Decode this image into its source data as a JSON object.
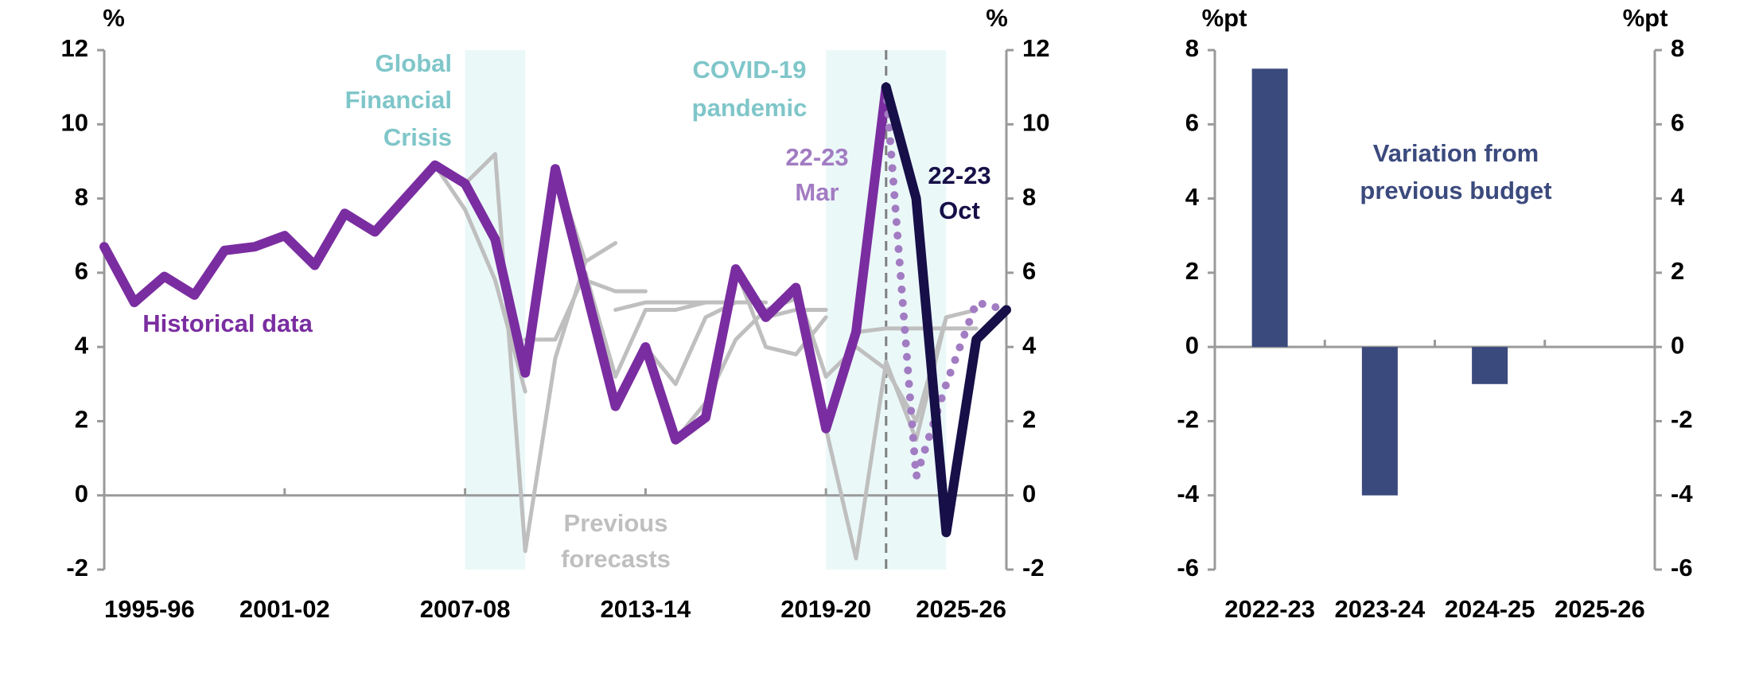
{
  "chart_data": [
    {
      "type": "line",
      "categories": [
        "1995-96",
        null,
        null,
        null,
        null,
        null,
        "2001-02",
        null,
        null,
        null,
        null,
        null,
        "2007-08",
        null,
        null,
        null,
        null,
        null,
        "2013-14",
        null,
        null,
        null,
        null,
        null,
        "2019-20",
        null,
        null,
        null,
        null,
        null,
        "2025-26"
      ],
      "series": [
        {
          "color": "#bfbfbf",
          "values": [
            null,
            null,
            null,
            null,
            null,
            null,
            null,
            null,
            null,
            null,
            null,
            8.9,
            7.7,
            5.8,
            2.8,
            null,
            null,
            null,
            null,
            null,
            null,
            null,
            null,
            null,
            null,
            null,
            null,
            null,
            null,
            null,
            null
          ]
        },
        {
          "color": "#bfbfbf",
          "values": [
            null,
            null,
            null,
            null,
            null,
            null,
            null,
            null,
            null,
            null,
            null,
            null,
            8.4,
            9.2,
            -1.5,
            3.7,
            6.3,
            null,
            null,
            null,
            null,
            null,
            null,
            null,
            null,
            null,
            null,
            null,
            null,
            null,
            null
          ]
        },
        {
          "color": "#bfbfbf",
          "values": [
            null,
            null,
            null,
            null,
            null,
            null,
            null,
            null,
            null,
            null,
            null,
            null,
            null,
            null,
            4.2,
            4.2,
            6.0,
            null,
            null,
            null,
            null,
            null,
            null,
            null,
            null,
            null,
            null,
            null,
            null,
            null,
            null
          ]
        },
        {
          "color": "#bfbfbf",
          "values": [
            null,
            null,
            null,
            null,
            null,
            null,
            null,
            null,
            null,
            null,
            null,
            null,
            null,
            null,
            null,
            8.8,
            6.3,
            6.8,
            null,
            null,
            null,
            null,
            null,
            null,
            null,
            null,
            null,
            null,
            null,
            null,
            null
          ]
        },
        {
          "color": "#bfbfbf",
          "values": [
            null,
            null,
            null,
            null,
            null,
            null,
            null,
            null,
            null,
            null,
            null,
            null,
            null,
            null,
            null,
            null,
            5.8,
            5.5,
            5.5,
            null,
            null,
            null,
            null,
            null,
            null,
            null,
            null,
            null,
            null,
            null,
            null
          ]
        },
        {
          "color": "#bfbfbf",
          "values": [
            null,
            null,
            null,
            null,
            null,
            null,
            null,
            null,
            null,
            null,
            null,
            null,
            null,
            null,
            null,
            null,
            6.0,
            3.2,
            5.0,
            5.0,
            5.2,
            null,
            null,
            null,
            null,
            null,
            null,
            null,
            null,
            null,
            null
          ]
        },
        {
          "color": "#bfbfbf",
          "values": [
            null,
            null,
            null,
            null,
            null,
            null,
            null,
            null,
            null,
            null,
            null,
            null,
            null,
            null,
            null,
            null,
            null,
            5.0,
            5.2,
            5.2,
            5.2,
            5.2,
            null,
            null,
            null,
            null,
            null,
            null,
            null,
            null,
            null
          ]
        },
        {
          "color": "#bfbfbf",
          "values": [
            null,
            null,
            null,
            null,
            null,
            null,
            null,
            null,
            null,
            null,
            null,
            null,
            null,
            null,
            null,
            null,
            null,
            null,
            4.0,
            3.0,
            4.8,
            5.2,
            5.2,
            null,
            null,
            null,
            null,
            null,
            null,
            null,
            null
          ]
        },
        {
          "color": "#bfbfbf",
          "values": [
            null,
            null,
            null,
            null,
            null,
            null,
            null,
            null,
            null,
            null,
            null,
            null,
            null,
            null,
            null,
            null,
            null,
            null,
            null,
            1.5,
            2.5,
            4.2,
            5.0,
            5.3,
            null,
            null,
            null,
            null,
            null,
            null,
            null
          ]
        },
        {
          "color": "#bfbfbf",
          "values": [
            null,
            null,
            null,
            null,
            null,
            null,
            null,
            null,
            null,
            null,
            null,
            null,
            null,
            null,
            null,
            null,
            null,
            null,
            null,
            null,
            null,
            6.1,
            4.0,
            3.8,
            4.8,
            null,
            null,
            null,
            null,
            null,
            null
          ]
        },
        {
          "color": "#bfbfbf",
          "values": [
            null,
            null,
            null,
            null,
            null,
            null,
            null,
            null,
            null,
            null,
            null,
            null,
            null,
            null,
            null,
            null,
            null,
            null,
            null,
            null,
            null,
            null,
            4.8,
            5.0,
            5.0,
            null,
            null,
            null,
            null,
            null,
            null
          ]
        },
        {
          "color": "#bfbfbf",
          "values": [
            null,
            null,
            null,
            null,
            null,
            null,
            null,
            null,
            null,
            null,
            null,
            null,
            null,
            null,
            null,
            null,
            null,
            null,
            null,
            null,
            null,
            null,
            null,
            5.6,
            3.2,
            4.0,
            3.4,
            2.0,
            4.8,
            null,
            null
          ]
        },
        {
          "color": "#bfbfbf",
          "values": [
            null,
            null,
            null,
            null,
            null,
            null,
            null,
            null,
            null,
            null,
            null,
            null,
            null,
            null,
            null,
            null,
            null,
            null,
            null,
            null,
            null,
            null,
            null,
            null,
            1.8,
            -1.7,
            3.6,
            1.5,
            4.8,
            5.0,
            null
          ]
        },
        {
          "color": "#bfbfbf",
          "values": [
            null,
            null,
            null,
            null,
            null,
            null,
            null,
            null,
            null,
            null,
            null,
            null,
            null,
            null,
            null,
            null,
            null,
            null,
            null,
            null,
            null,
            null,
            null,
            null,
            null,
            4.4,
            4.5,
            4.5,
            4.5,
            4.5,
            null
          ]
        },
        {
          "label": [
            "Historical data"
          ],
          "color": "#7a2da0",
          "values": [
            6.7,
            5.2,
            5.9,
            5.4,
            6.6,
            6.7,
            7.0,
            6.2,
            7.6,
            7.1,
            8.0,
            8.9,
            8.4,
            6.9,
            3.3,
            8.8,
            5.6,
            2.4,
            4.0,
            1.5,
            2.1,
            6.1,
            4.8,
            5.6,
            1.8,
            4.4,
            11.0,
            null,
            null,
            null,
            null
          ]
        },
        {
          "label": [
            "22-23",
            "Mar"
          ],
          "color": "#a27cc2",
          "style": "dotted",
          "values": [
            null,
            null,
            null,
            null,
            null,
            null,
            null,
            null,
            null,
            null,
            null,
            null,
            null,
            null,
            null,
            null,
            null,
            null,
            null,
            null,
            null,
            null,
            null,
            null,
            null,
            null,
            11.0,
            0.5,
            3.0,
            5.2,
            5.0
          ]
        },
        {
          "label": [
            "22-23",
            "Oct"
          ],
          "color": "#160f48",
          "values": [
            null,
            null,
            null,
            null,
            null,
            null,
            null,
            null,
            null,
            null,
            null,
            null,
            null,
            null,
            null,
            null,
            null,
            null,
            null,
            null,
            null,
            null,
            null,
            null,
            null,
            null,
            11.0,
            8.0,
            -1.0,
            4.2,
            5.0
          ]
        }
      ],
      "annotations": [
        {
          "lines": [
            "Global",
            "Financial",
            "Crisis"
          ],
          "color": "#7fc6c9"
        },
        {
          "lines": [
            "COVID-19",
            "pandemic"
          ],
          "color": "#7fc6c9"
        },
        {
          "lines": [
            "Previous",
            "forecasts"
          ],
          "color": "#bfbfbf"
        }
      ],
      "y_unit": "%",
      "y2_unit": "%",
      "ylim": [
        -2,
        12
      ],
      "yticks": [
        -2,
        0,
        2,
        4,
        6,
        8,
        10,
        12
      ],
      "y2lim": [
        -2,
        12
      ],
      "y2ticks": [
        -2,
        0,
        2,
        4,
        6,
        8,
        10,
        12
      ]
    },
    {
      "type": "bar",
      "categories": [
        "2022-23",
        "2023-24",
        "2024-25",
        "2025-26"
      ],
      "values": [
        7.5,
        -4,
        -1,
        0
      ],
      "color": "#3b4a7d",
      "annotations": [
        {
          "lines": [
            "Variation from",
            "previous budget"
          ],
          "color": "#3b4a7d"
        }
      ],
      "y_unit": "%pt",
      "y2_unit": "%pt",
      "ylim": [
        -6,
        8
      ],
      "yticks": [
        -6,
        -4,
        -2,
        0,
        2,
        4,
        6,
        8
      ],
      "y2lim": [
        -6,
        8
      ],
      "y2ticks": [
        -6,
        -4,
        -2,
        0,
        2,
        4,
        6,
        8
      ]
    }
  ]
}
